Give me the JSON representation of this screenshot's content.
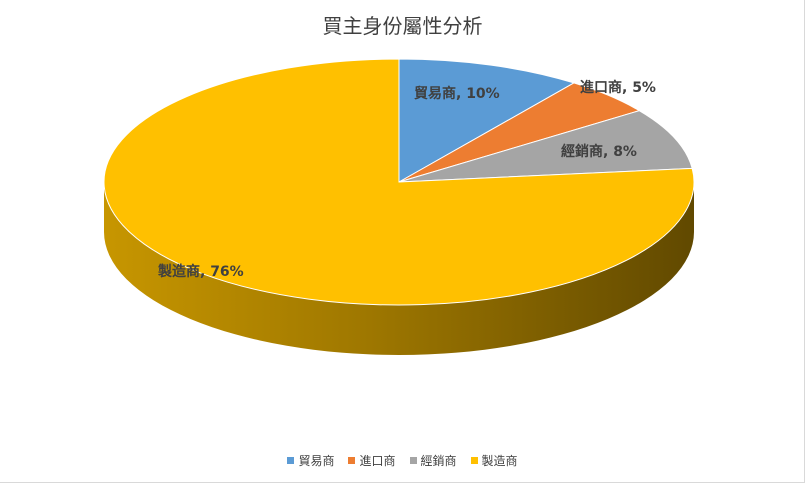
{
  "chart_data": {
    "type": "pie",
    "title": "買主身份屬性分析",
    "style": "3d",
    "categories": [
      "貿易商",
      "進口商",
      "經銷商",
      "製造商"
    ],
    "values": [
      10,
      5,
      8,
      76
    ],
    "data_labels": [
      "貿易商, 10%",
      "進口商, 5%",
      "經銷商, 8%",
      "製造商, 76%"
    ],
    "colors": [
      "#5B9BD5",
      "#ED7D31",
      "#A5A5A5",
      "#FFC000"
    ],
    "legend_position": "bottom"
  }
}
